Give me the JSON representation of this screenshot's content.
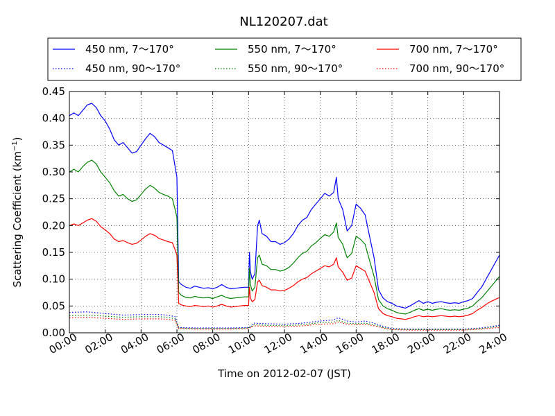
{
  "chart_data": {
    "type": "line",
    "title": "NL120207.dat",
    "xlabel": "Time on 2012-02-07 (JST)",
    "ylabel": "Scattering Coefficient (km",
    "ylabel_superscript": "−1",
    "ylabel_close": ")",
    "xlim": [
      0,
      24
    ],
    "ylim": [
      0,
      0.45
    ],
    "x_ticks": [
      0,
      2,
      4,
      6,
      8,
      10,
      12,
      14,
      16,
      18,
      20,
      22,
      24
    ],
    "x_tick_labels": [
      "00:00",
      "02:00",
      "04:00",
      "06:00",
      "08:00",
      "10:00",
      "12:00",
      "14:00",
      "16:00",
      "18:00",
      "20:00",
      "22:00",
      "24:00"
    ],
    "y_ticks": [
      0,
      0.05,
      0.1,
      0.15,
      0.2,
      0.25,
      0.3,
      0.35,
      0.4,
      0.45
    ],
    "y_tick_labels": [
      "0.00",
      "0.05",
      "0.10",
      "0.15",
      "0.20",
      "0.25",
      "0.30",
      "0.35",
      "0.40",
      "0.45"
    ],
    "grid": true,
    "legend_position": "top, above plot",
    "series": [
      {
        "name": "450 nm, 7～170°",
        "color": "#0000ff",
        "style": "solid",
        "x": [
          0,
          0.25,
          0.5,
          0.75,
          1.0,
          1.25,
          1.5,
          1.75,
          2.0,
          2.25,
          2.5,
          2.75,
          3.0,
          3.25,
          3.5,
          3.75,
          4.0,
          4.25,
          4.5,
          4.75,
          5.0,
          5.25,
          5.5,
          5.75,
          5.9,
          6.0,
          6.1,
          6.25,
          6.5,
          6.75,
          7.0,
          7.25,
          7.5,
          7.75,
          8.0,
          8.25,
          8.5,
          8.75,
          9.0,
          9.25,
          9.5,
          9.75,
          10.0,
          10.05,
          10.1,
          10.2,
          10.35,
          10.5,
          10.6,
          10.75,
          11.0,
          11.25,
          11.5,
          11.75,
          12.0,
          12.25,
          12.5,
          12.75,
          13.0,
          13.25,
          13.5,
          13.75,
          14.0,
          14.25,
          14.5,
          14.75,
          14.9,
          15.0,
          15.25,
          15.5,
          15.75,
          16.0,
          16.25,
          16.5,
          16.75,
          17.0,
          17.25,
          17.5,
          17.75,
          18.0,
          18.25,
          18.5,
          18.75,
          19.0,
          19.25,
          19.5,
          19.75,
          20.0,
          20.25,
          20.5,
          20.75,
          21.0,
          21.25,
          21.5,
          21.75,
          22.0,
          22.25,
          22.5,
          22.75,
          23.0,
          23.25,
          23.5,
          23.75,
          24.0
        ],
        "values": [
          0.405,
          0.41,
          0.405,
          0.415,
          0.425,
          0.428,
          0.42,
          0.405,
          0.395,
          0.38,
          0.36,
          0.35,
          0.355,
          0.345,
          0.335,
          0.338,
          0.35,
          0.362,
          0.372,
          0.366,
          0.355,
          0.35,
          0.345,
          0.34,
          0.31,
          0.29,
          0.095,
          0.09,
          0.085,
          0.083,
          0.087,
          0.085,
          0.083,
          0.084,
          0.082,
          0.085,
          0.09,
          0.085,
          0.082,
          0.083,
          0.084,
          0.085,
          0.085,
          0.15,
          0.115,
          0.1,
          0.11,
          0.2,
          0.21,
          0.185,
          0.18,
          0.17,
          0.17,
          0.165,
          0.168,
          0.175,
          0.185,
          0.2,
          0.21,
          0.215,
          0.23,
          0.24,
          0.25,
          0.26,
          0.255,
          0.262,
          0.29,
          0.25,
          0.23,
          0.19,
          0.2,
          0.24,
          0.232,
          0.22,
          0.18,
          0.14,
          0.08,
          0.065,
          0.058,
          0.055,
          0.05,
          0.048,
          0.046,
          0.05,
          0.055,
          0.06,
          0.055,
          0.058,
          0.055,
          0.057,
          0.058,
          0.056,
          0.055,
          0.056,
          0.055,
          0.058,
          0.06,
          0.064,
          0.075,
          0.085,
          0.1,
          0.115,
          0.13,
          0.145
        ]
      },
      {
        "name": "550 nm, 7～170°",
        "color": "#008000",
        "style": "solid",
        "x": [
          0,
          0.25,
          0.5,
          0.75,
          1.0,
          1.25,
          1.5,
          1.75,
          2.0,
          2.25,
          2.5,
          2.75,
          3.0,
          3.25,
          3.5,
          3.75,
          4.0,
          4.25,
          4.5,
          4.75,
          5.0,
          5.25,
          5.5,
          5.75,
          5.9,
          6.0,
          6.1,
          6.25,
          6.5,
          6.75,
          7.0,
          7.25,
          7.5,
          7.75,
          8.0,
          8.25,
          8.5,
          8.75,
          9.0,
          9.25,
          9.5,
          9.75,
          10.0,
          10.05,
          10.1,
          10.2,
          10.35,
          10.5,
          10.6,
          10.75,
          11.0,
          11.25,
          11.5,
          11.75,
          12.0,
          12.25,
          12.5,
          12.75,
          13.0,
          13.25,
          13.5,
          13.75,
          14.0,
          14.25,
          14.5,
          14.75,
          14.9,
          15.0,
          15.25,
          15.5,
          15.75,
          16.0,
          16.25,
          16.5,
          16.75,
          17.0,
          17.25,
          17.5,
          17.75,
          18.0,
          18.25,
          18.5,
          18.75,
          19.0,
          19.25,
          19.5,
          19.75,
          20.0,
          20.25,
          20.5,
          20.75,
          21.0,
          21.25,
          21.5,
          21.75,
          22.0,
          22.25,
          22.5,
          22.75,
          23.0,
          23.25,
          23.5,
          23.75,
          24.0
        ],
        "values": [
          0.3,
          0.305,
          0.3,
          0.31,
          0.318,
          0.322,
          0.315,
          0.3,
          0.29,
          0.28,
          0.265,
          0.255,
          0.258,
          0.25,
          0.245,
          0.248,
          0.258,
          0.268,
          0.275,
          0.27,
          0.262,
          0.258,
          0.255,
          0.25,
          0.23,
          0.215,
          0.075,
          0.07,
          0.066,
          0.065,
          0.068,
          0.066,
          0.065,
          0.066,
          0.064,
          0.067,
          0.07,
          0.066,
          0.064,
          0.065,
          0.066,
          0.067,
          0.067,
          0.12,
          0.09,
          0.078,
          0.085,
          0.14,
          0.145,
          0.128,
          0.125,
          0.118,
          0.118,
          0.115,
          0.117,
          0.122,
          0.13,
          0.14,
          0.148,
          0.152,
          0.162,
          0.168,
          0.176,
          0.183,
          0.18,
          0.188,
          0.205,
          0.178,
          0.165,
          0.14,
          0.148,
          0.18,
          0.174,
          0.165,
          0.135,
          0.105,
          0.062,
          0.05,
          0.045,
          0.042,
          0.038,
          0.036,
          0.035,
          0.038,
          0.042,
          0.045,
          0.042,
          0.044,
          0.042,
          0.044,
          0.045,
          0.043,
          0.042,
          0.043,
          0.042,
          0.044,
          0.046,
          0.05,
          0.058,
          0.065,
          0.075,
          0.085,
          0.095,
          0.105
        ]
      },
      {
        "name": "700 nm, 7～170°",
        "color": "#ff0000",
        "style": "solid",
        "x": [
          0,
          0.25,
          0.5,
          0.75,
          1.0,
          1.25,
          1.5,
          1.75,
          2.0,
          2.25,
          2.5,
          2.75,
          3.0,
          3.25,
          3.5,
          3.75,
          4.0,
          4.25,
          4.5,
          4.75,
          5.0,
          5.25,
          5.5,
          5.75,
          5.9,
          6.0,
          6.1,
          6.25,
          6.5,
          6.75,
          7.0,
          7.25,
          7.5,
          7.75,
          8.0,
          8.25,
          8.5,
          8.75,
          9.0,
          9.25,
          9.5,
          9.75,
          10.0,
          10.05,
          10.1,
          10.2,
          10.35,
          10.5,
          10.6,
          10.75,
          11.0,
          11.25,
          11.5,
          11.75,
          12.0,
          12.25,
          12.5,
          12.75,
          13.0,
          13.25,
          13.5,
          13.75,
          14.0,
          14.25,
          14.5,
          14.75,
          14.9,
          15.0,
          15.25,
          15.5,
          15.75,
          16.0,
          16.25,
          16.5,
          16.75,
          17.0,
          17.25,
          17.5,
          17.75,
          18.0,
          18.25,
          18.5,
          18.75,
          19.0,
          19.25,
          19.5,
          19.75,
          20.0,
          20.25,
          20.5,
          20.75,
          21.0,
          21.25,
          21.5,
          21.75,
          22.0,
          22.25,
          22.5,
          22.75,
          23.0,
          23.25,
          23.5,
          23.75,
          24.0
        ],
        "values": [
          0.2,
          0.203,
          0.2,
          0.205,
          0.21,
          0.213,
          0.208,
          0.198,
          0.192,
          0.185,
          0.175,
          0.17,
          0.172,
          0.168,
          0.165,
          0.167,
          0.173,
          0.18,
          0.185,
          0.182,
          0.176,
          0.173,
          0.17,
          0.168,
          0.155,
          0.145,
          0.055,
          0.052,
          0.05,
          0.049,
          0.051,
          0.05,
          0.049,
          0.05,
          0.048,
          0.05,
          0.053,
          0.05,
          0.048,
          0.049,
          0.05,
          0.051,
          0.051,
          0.085,
          0.065,
          0.058,
          0.062,
          0.095,
          0.098,
          0.088,
          0.085,
          0.08,
          0.08,
          0.078,
          0.079,
          0.083,
          0.088,
          0.095,
          0.1,
          0.103,
          0.11,
          0.115,
          0.12,
          0.125,
          0.123,
          0.128,
          0.14,
          0.123,
          0.113,
          0.098,
          0.102,
          0.125,
          0.12,
          0.115,
          0.095,
          0.075,
          0.045,
          0.036,
          0.032,
          0.03,
          0.027,
          0.026,
          0.025,
          0.027,
          0.03,
          0.032,
          0.03,
          0.031,
          0.03,
          0.031,
          0.032,
          0.031,
          0.03,
          0.031,
          0.03,
          0.031,
          0.033,
          0.036,
          0.042,
          0.047,
          0.053,
          0.058,
          0.062,
          0.066
        ]
      },
      {
        "name": "450 nm, 90～170°",
        "color": "#0000ff",
        "style": "dotted",
        "x": [
          0,
          1,
          2,
          3,
          4,
          5,
          5.5,
          5.9,
          6.1,
          7,
          8,
          9,
          10,
          10.3,
          11,
          12,
          13,
          14,
          14.75,
          15,
          15.5,
          16,
          16.5,
          17,
          17.5,
          18,
          19,
          20,
          21,
          22,
          23,
          24
        ],
        "values": [
          0.038,
          0.039,
          0.036,
          0.033,
          0.034,
          0.034,
          0.033,
          0.03,
          0.01,
          0.009,
          0.009,
          0.009,
          0.01,
          0.018,
          0.017,
          0.016,
          0.018,
          0.022,
          0.024,
          0.028,
          0.022,
          0.02,
          0.022,
          0.018,
          0.012,
          0.008,
          0.007,
          0.007,
          0.007,
          0.007,
          0.009,
          0.014
        ]
      },
      {
        "name": "550 nm, 90～170°",
        "color": "#008000",
        "style": "dotted",
        "x": [
          0,
          1,
          2,
          3,
          4,
          5,
          5.5,
          5.9,
          6.1,
          7,
          8,
          9,
          10,
          10.3,
          11,
          12,
          13,
          14,
          14.75,
          15,
          15.5,
          16,
          16.5,
          17,
          17.5,
          18,
          19,
          20,
          21,
          22,
          23,
          24
        ],
        "values": [
          0.032,
          0.033,
          0.031,
          0.029,
          0.03,
          0.03,
          0.029,
          0.026,
          0.009,
          0.008,
          0.008,
          0.008,
          0.009,
          0.015,
          0.014,
          0.013,
          0.015,
          0.019,
          0.02,
          0.023,
          0.018,
          0.017,
          0.018,
          0.015,
          0.01,
          0.007,
          0.006,
          0.006,
          0.006,
          0.006,
          0.008,
          0.012
        ]
      },
      {
        "name": "700 nm, 90～170°",
        "color": "#ff0000",
        "style": "dotted",
        "x": [
          0,
          1,
          2,
          3,
          4,
          5,
          5.5,
          5.9,
          6.1,
          7,
          8,
          9,
          10,
          10.3,
          11,
          12,
          13,
          14,
          14.75,
          15,
          15.5,
          16,
          16.5,
          17,
          17.5,
          18,
          19,
          20,
          21,
          22,
          23,
          24
        ],
        "values": [
          0.028,
          0.029,
          0.027,
          0.025,
          0.026,
          0.026,
          0.025,
          0.023,
          0.008,
          0.007,
          0.007,
          0.007,
          0.008,
          0.013,
          0.012,
          0.011,
          0.013,
          0.016,
          0.017,
          0.02,
          0.016,
          0.015,
          0.016,
          0.013,
          0.009,
          0.006,
          0.005,
          0.005,
          0.005,
          0.005,
          0.007,
          0.01
        ]
      }
    ]
  }
}
